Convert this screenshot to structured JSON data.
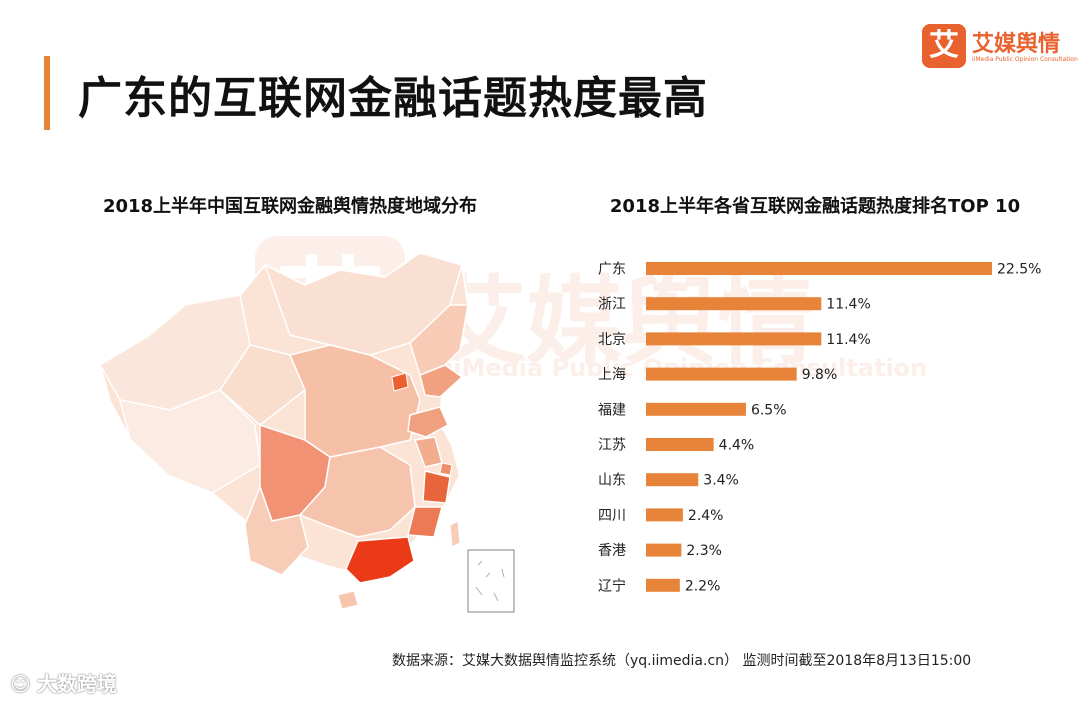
{
  "header": {
    "title": "广东的互联网金融话题热度最高",
    "brand_badge": "艾",
    "brand_name": "艾媒舆情",
    "brand_sub": "iiMedia Public Opinion Consultation"
  },
  "watermark": {
    "badge": "艾",
    "name": "艾媒舆情",
    "sub": "iiMedia Public Opinion Consultation"
  },
  "map": {
    "title": "2018上半年中国互联网金融舆情热度地域分布"
  },
  "chart_data": {
    "type": "bar",
    "orientation": "horizontal",
    "title": "2018上半年各省互联网金融话题热度排名TOP 10",
    "categories": [
      "广东",
      "浙江",
      "北京",
      "上海",
      "福建",
      "江苏",
      "山东",
      "四川",
      "香港",
      "辽宁"
    ],
    "values": [
      22.5,
      11.4,
      11.4,
      9.8,
      6.5,
      4.4,
      3.4,
      2.4,
      2.3,
      2.2
    ],
    "value_labels": [
      "22.5%",
      "11.4%",
      "11.4%",
      "9.8%",
      "6.5%",
      "4.4%",
      "3.4%",
      "2.4%",
      "2.3%",
      "2.2%"
    ],
    "unit": "%",
    "xlim": [
      0,
      22.5
    ],
    "grid": false,
    "color": "#e8843a"
  },
  "footer": {
    "source": "数据来源：艾媒大数据舆情监控系统（yq.iimedia.cn）   监测时间截至2018年8月13日15:00",
    "corner_mark": "大数跨境"
  },
  "colors": {
    "accent": "#e8843a",
    "brand": "#e8612e",
    "map_base": "#fbe3d6",
    "map_high": "#ea3a17"
  }
}
